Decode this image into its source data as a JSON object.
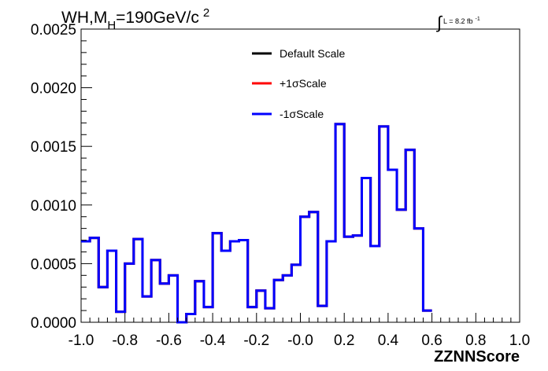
{
  "chart_data": {
    "type": "step",
    "title": {
      "prefix": "WH,M",
      "subscript": "H",
      "suffix": "=190GeV/c",
      "superscript": "2"
    },
    "lumi": {
      "integral": "∫",
      "text": "L = 8.2 fb",
      "superscript": "-1"
    },
    "xlabel": "ZZNNScore",
    "ylabel": "",
    "xlim": [
      -1.0,
      1.0
    ],
    "ylim": [
      0.0,
      0.0025
    ],
    "x_ticks": [
      "-1.0",
      "-0.8",
      "-0.6",
      "-0.4",
      "-0.2",
      "-0.0",
      "0.2",
      "0.4",
      "0.6",
      "0.8",
      "1.0"
    ],
    "y_ticks": [
      "0.0000",
      "0.0005",
      "0.0010",
      "0.0015",
      "0.0020",
      "0.0025"
    ],
    "grid": false,
    "legend_position": "top-center",
    "bin_edges_start": -1.0,
    "bin_width": 0.04,
    "series": [
      {
        "name": "Default Scale",
        "color": "#000000",
        "values": [
          0.00069,
          0.00072,
          0.0003,
          0.00061,
          9e-05,
          0.0005,
          0.00071,
          0.00022,
          0.00053,
          0.00033,
          0.0004,
          0.0,
          7e-05,
          0.00035,
          0.00013,
          0.00076,
          0.00061,
          0.00069,
          0.0007,
          0.00013,
          0.00027,
          0.00012,
          0.00036,
          0.0004,
          0.00049,
          0.0009,
          0.00094,
          0.00014,
          0.00069,
          0.00169,
          0.00073,
          0.00074,
          0.00123,
          0.00065,
          0.00167,
          0.0013,
          0.00096,
          0.00147,
          0.0008,
          0.0001
        ]
      },
      {
        "name": "+1σScale",
        "color": "#ff0000",
        "values": [
          0.00069,
          0.00072,
          0.0003,
          0.00061,
          9e-05,
          0.0005,
          0.00071,
          0.00022,
          0.00053,
          0.00033,
          0.0004,
          0.0,
          7e-05,
          0.00035,
          0.00013,
          0.00076,
          0.00061,
          0.00069,
          0.0007,
          0.00013,
          0.00027,
          0.00012,
          0.00036,
          0.0004,
          0.00049,
          0.0009,
          0.00094,
          0.00014,
          0.00069,
          0.00169,
          0.00073,
          0.00074,
          0.00123,
          0.00065,
          0.00167,
          0.0013,
          0.00096,
          0.00147,
          0.0008,
          0.0001
        ]
      },
      {
        "name": "-1σScale",
        "color": "#0000ff",
        "values": [
          0.00069,
          0.00072,
          0.0003,
          0.00061,
          9e-05,
          0.0005,
          0.00071,
          0.00022,
          0.00053,
          0.00033,
          0.0004,
          0.0,
          7e-05,
          0.00035,
          0.00013,
          0.00076,
          0.00061,
          0.00069,
          0.0007,
          0.00013,
          0.00027,
          0.00012,
          0.00036,
          0.0004,
          0.00049,
          0.0009,
          0.00094,
          0.00014,
          0.00069,
          0.00169,
          0.00073,
          0.00074,
          0.00123,
          0.00065,
          0.00167,
          0.0013,
          0.00096,
          0.00147,
          0.0008,
          0.0001
        ]
      }
    ]
  }
}
